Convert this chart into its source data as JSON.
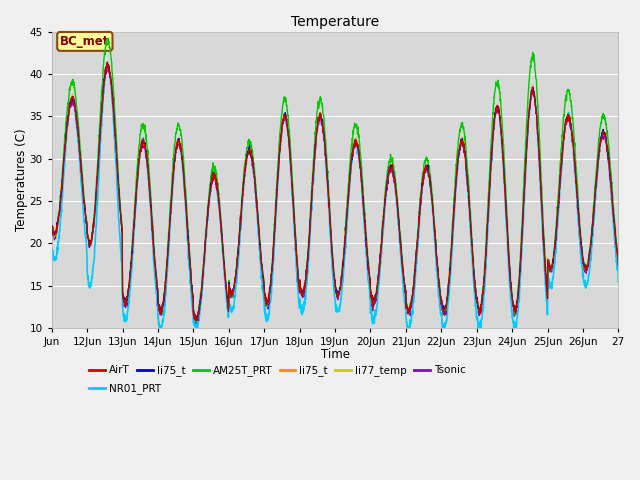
{
  "title": "Temperature",
  "xlabel": "Time",
  "ylabel": "Temperatures (C)",
  "ylim": [
    10,
    45
  ],
  "background_color": "#f0f0f0",
  "plot_bg_color": "#d8d8d8",
  "annotation_text": "BC_met",
  "annotation_bg": "#ffff99",
  "annotation_border": "#8B4513",
  "series": {
    "AirT": {
      "color": "#cc0000",
      "lw": 0.8
    },
    "li75_t_1": {
      "color": "#0000cc",
      "lw": 0.8
    },
    "AM25T_PRT": {
      "color": "#00cc00",
      "lw": 1.0
    },
    "li75_t_2": {
      "color": "#ff8800",
      "lw": 0.8
    },
    "li77_temp": {
      "color": "#cccc00",
      "lw": 0.8
    },
    "Tsonic": {
      "color": "#8800cc",
      "lw": 0.8
    },
    "NR01_PRT": {
      "color": "#00ccff",
      "lw": 1.2
    }
  },
  "legend_entries": [
    {
      "label": "AirT",
      "color": "#cc0000"
    },
    {
      "label": "li75_t",
      "color": "#0000cc"
    },
    {
      "label": "AM25T_PRT",
      "color": "#00cc00"
    },
    {
      "label": "li75_t",
      "color": "#ff8800"
    },
    {
      "label": "li77_temp",
      "color": "#cccc00"
    },
    {
      "label": "Tsonic",
      "color": "#8800cc"
    },
    {
      "label": "NR01_PRT",
      "color": "#00ccff"
    }
  ],
  "tick_labels": [
    "Jun",
    "12Jun",
    "13Jun",
    "14Jun",
    "15Jun",
    "16Jun",
    "17Jun",
    "18Jun",
    "19Jun",
    "20Jun",
    "21Jun",
    "22Jun",
    "23Jun",
    "24Jun",
    "25Jun",
    "26Jun",
    "27"
  ],
  "yticks": [
    10,
    15,
    20,
    25,
    30,
    35,
    40,
    45
  ],
  "n_days": 16,
  "day_peaks": [
    37,
    41,
    32,
    32,
    28,
    31,
    35,
    35,
    32,
    29,
    29,
    32,
    36,
    38,
    35,
    33,
    21
  ],
  "day_mins": [
    21,
    20,
    13,
    12,
    11,
    14,
    13,
    14,
    14,
    13,
    12,
    12,
    12,
    12,
    17,
    17,
    17
  ],
  "am25t_extra": [
    2,
    3,
    2,
    2,
    1,
    1,
    2,
    2,
    2,
    1,
    1,
    2,
    3,
    4,
    3,
    2,
    1
  ],
  "nr01_low_ext": [
    3,
    5,
    2,
    2,
    1,
    2,
    2,
    2,
    2,
    2,
    2,
    2,
    2,
    2,
    2,
    2,
    2
  ]
}
